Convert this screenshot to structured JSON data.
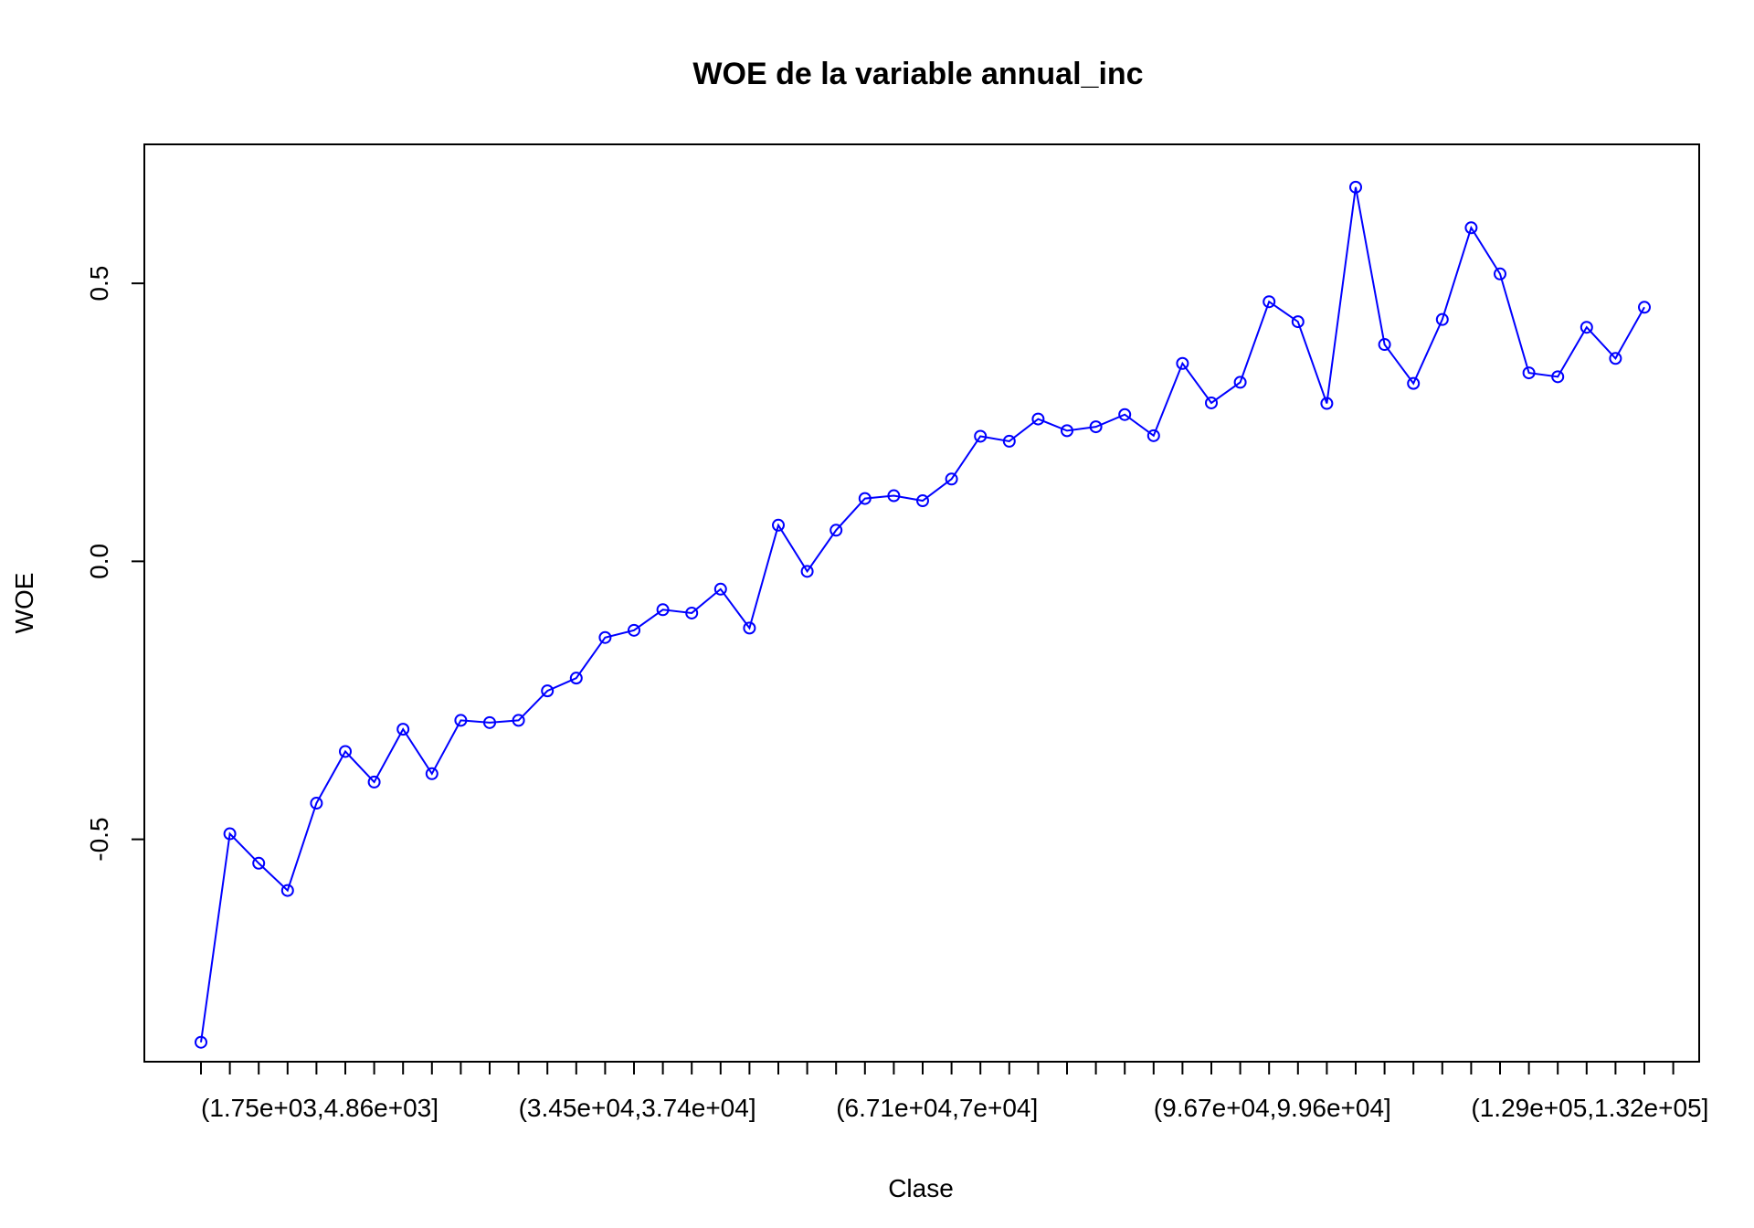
{
  "chart_data": {
    "type": "line",
    "title": "WOE de la variable annual_inc",
    "xlabel": "Clase",
    "ylabel": "WOE",
    "ylim": [
      -0.9,
      0.75
    ],
    "yticks": [
      -0.5,
      0.0,
      0.5
    ],
    "ytick_labels": [
      "-0.5",
      "0.0",
      "0.5"
    ],
    "x_tick_count": 52,
    "x_labeled_ticks": [
      {
        "index": 1,
        "label": "(1.75e+03,4.86e+03]"
      },
      {
        "index": 12,
        "label": "(3.45e+04,3.74e+04]"
      },
      {
        "index": 23,
        "label": "(6.71e+04,7e+04]"
      },
      {
        "index": 34,
        "label": "(9.67e+04,9.96e+04]"
      },
      {
        "index": 45,
        "label": "(1.29e+05,1.32e+05]"
      }
    ],
    "series": [
      {
        "color": "#0000ff",
        "values": [
          -0.865,
          -0.49,
          -0.543,
          -0.592,
          -0.435,
          -0.342,
          -0.397,
          -0.302,
          -0.382,
          -0.286,
          -0.29,
          -0.286,
          -0.233,
          -0.21,
          -0.137,
          -0.124,
          -0.087,
          -0.093,
          -0.05,
          -0.12,
          0.065,
          -0.018,
          0.056,
          0.113,
          0.118,
          0.109,
          0.148,
          0.225,
          0.216,
          0.256,
          0.235,
          0.242,
          0.264,
          0.226,
          0.356,
          0.285,
          0.322,
          0.467,
          0.431,
          0.284,
          0.673,
          0.39,
          0.32,
          0.435,
          0.6,
          0.517,
          0.339,
          0.332,
          0.421,
          0.365,
          0.457
        ]
      }
    ]
  }
}
